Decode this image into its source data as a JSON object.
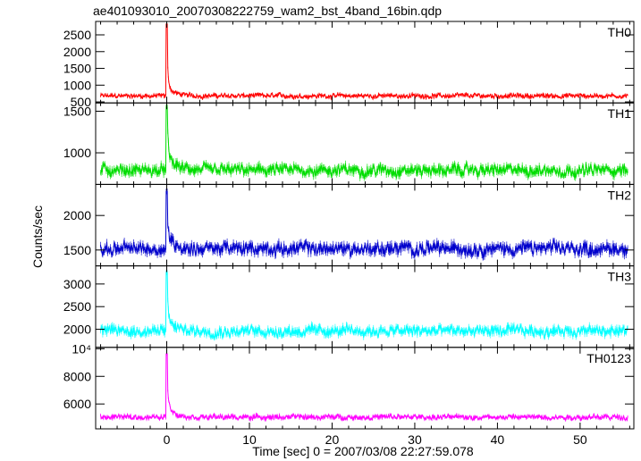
{
  "title": "ae401093010_20070308222759_wam2_bst_4band_16bin.qdp",
  "chart_data": {
    "type": "line",
    "xlabel": "Time [sec] 0 = 2007/03/08 22:27:59.078",
    "ylabel": "Counts/sec",
    "xlim": [
      -8.6,
      56.5
    ],
    "xticks": [
      0,
      10,
      20,
      30,
      40,
      50
    ],
    "x_start": -8,
    "x_end": 55.8,
    "x_step": 0.0625,
    "panels": [
      {
        "name": "TH0",
        "color": "#ff0000",
        "ylim": [
          470,
          2900
        ],
        "yticks": [
          {
            "v": 500,
            "label": "500"
          },
          {
            "v": 1000,
            "label": "1000"
          },
          {
            "v": 1500,
            "label": "1500"
          },
          {
            "v": 2000,
            "label": "2000"
          },
          {
            "v": 2500,
            "label": "2500"
          }
        ],
        "baseline": 680,
        "noise": 55,
        "peak": 2900,
        "decay": 0.9,
        "plateau": 300
      },
      {
        "name": "TH1",
        "color": "#00dd00",
        "ylim": [
          620,
          1600
        ],
        "yticks": [
          {
            "v": 1000,
            "label": "1000"
          },
          {
            "v": 1500,
            "label": "1500"
          }
        ],
        "baseline": 790,
        "noise": 55,
        "peak": 1600,
        "decay": 0.9,
        "plateau": 200
      },
      {
        "name": "TH2",
        "color": "#0000cc",
        "ylim": [
          1270,
          2450
        ],
        "yticks": [
          {
            "v": 1500,
            "label": "1500"
          },
          {
            "v": 2000,
            "label": "2000"
          }
        ],
        "baseline": 1520,
        "noise": 75,
        "peak": 2420,
        "decay": 0.9,
        "plateau": 200
      },
      {
        "name": "TH3",
        "color": "#00ffff",
        "ylim": [
          1600,
          3400
        ],
        "yticks": [
          {
            "v": 2000,
            "label": "2000"
          },
          {
            "v": 2500,
            "label": "2500"
          },
          {
            "v": 3000,
            "label": "3000"
          }
        ],
        "baseline": 1960,
        "noise": 95,
        "peak": 3350,
        "decay": 0.9,
        "plateau": 300
      },
      {
        "name": "TH0123",
        "color": "#ff00ff",
        "ylim": [
          4200,
          10100
        ],
        "yticks": [
          {
            "v": 6000,
            "label": "6000"
          },
          {
            "v": 8000,
            "label": "8000"
          },
          {
            "v": 10000,
            "label": "10⁴"
          }
        ],
        "baseline": 5050,
        "noise": 150,
        "peak": 9900,
        "decay": 0.9,
        "plateau": 900
      }
    ]
  }
}
